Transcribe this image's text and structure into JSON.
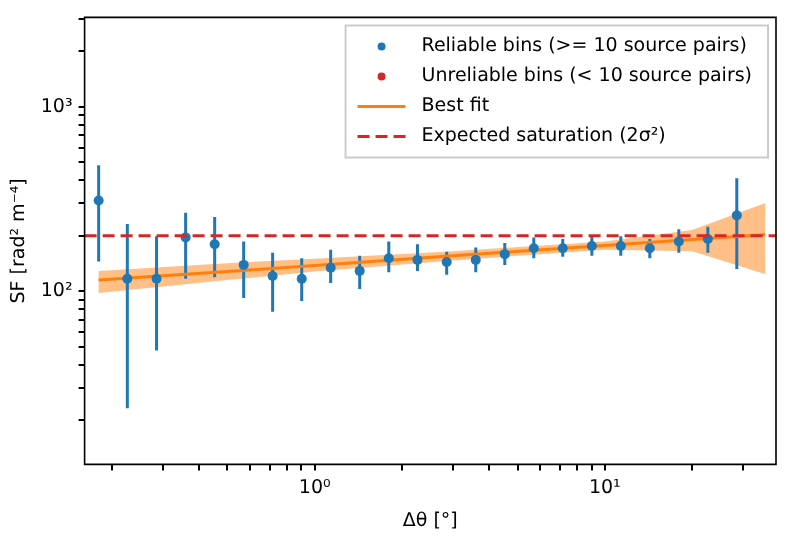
{
  "chart_data": {
    "type": "scatter",
    "xlabel": "Δθ [°]",
    "ylabel": "SF [rad² m⁻⁴]",
    "log": "xy",
    "legend": "top right",
    "xlim": [
      0.161,
      38.9
    ],
    "ylim": [
      11.5,
      3060
    ],
    "xticks": [
      {
        "value": 0.2,
        "label": null
      },
      {
        "value": 0.3,
        "label": null
      },
      {
        "value": 0.4,
        "label": null
      },
      {
        "value": 0.5,
        "label": null
      },
      {
        "value": 0.6,
        "label": null
      },
      {
        "value": 0.7,
        "label": null
      },
      {
        "value": 0.8,
        "label": null
      },
      {
        "value": 0.9,
        "label": null
      },
      {
        "value": 1,
        "label": "10⁰"
      },
      {
        "value": 2,
        "label": null
      },
      {
        "value": 3,
        "label": null
      },
      {
        "value": 4,
        "label": null
      },
      {
        "value": 5,
        "label": null
      },
      {
        "value": 6,
        "label": null
      },
      {
        "value": 7,
        "label": null
      },
      {
        "value": 8,
        "label": null
      },
      {
        "value": 9,
        "label": null
      },
      {
        "value": 10,
        "label": "10¹"
      },
      {
        "value": 20,
        "label": null
      },
      {
        "value": 30,
        "label": null
      }
    ],
    "yticks": [
      {
        "value": 20,
        "label": null
      },
      {
        "value": 30,
        "label": null
      },
      {
        "value": 40,
        "label": null
      },
      {
        "value": 50,
        "label": null
      },
      {
        "value": 60,
        "label": null
      },
      {
        "value": 70,
        "label": null
      },
      {
        "value": 80,
        "label": null
      },
      {
        "value": 90,
        "label": null
      },
      {
        "value": 100,
        "label": "10²"
      },
      {
        "value": 200,
        "label": null
      },
      {
        "value": 300,
        "label": null
      },
      {
        "value": 400,
        "label": null
      },
      {
        "value": 500,
        "label": null
      },
      {
        "value": 600,
        "label": null
      },
      {
        "value": 700,
        "label": null
      },
      {
        "value": 800,
        "label": null
      },
      {
        "value": 900,
        "label": null
      },
      {
        "value": 1000,
        "label": "10³"
      },
      {
        "value": 2000,
        "label": null
      },
      {
        "value": 3000,
        "label": null
      }
    ],
    "series": [
      {
        "name": "Reliable bins (>= 10 source pairs)",
        "marker": "circle",
        "color": "#1f77b4",
        "x": [
          0.18,
          0.226,
          0.285,
          0.359,
          0.452,
          0.569,
          0.716,
          0.902,
          1.135,
          1.429,
          1.8,
          2.26,
          2.85,
          3.59,
          4.52,
          5.69,
          7.16,
          9.02,
          11.35,
          14.29,
          17.99,
          22.65,
          28.5
        ],
        "values": [
          311,
          117,
          117,
          196,
          180,
          139,
          121,
          117,
          134,
          129,
          151,
          148,
          144,
          148,
          159,
          171,
          171,
          176,
          176,
          171,
          186,
          192,
          258
        ],
        "errors": [
          [
            145,
            482
          ],
          [
            23.2,
            232
          ],
          [
            47.7,
            199
          ],
          [
            117,
            267
          ],
          [
            119,
            253
          ],
          [
            91.8,
            186
          ],
          [
            77.3,
            162
          ],
          [
            88.5,
            151
          ],
          [
            111,
            168
          ],
          [
            103,
            156
          ],
          [
            127,
            186
          ],
          [
            129,
            180
          ],
          [
            123,
            164
          ],
          [
            127,
            173
          ],
          [
            139,
            183
          ],
          [
            151,
            196
          ],
          [
            154,
            192
          ],
          [
            156,
            199
          ],
          [
            156,
            199
          ],
          [
            151,
            192
          ],
          [
            162,
            217
          ],
          [
            162,
            224
          ],
          [
            132,
            410
          ]
        ]
      },
      {
        "name": "Unreliable bins (< 10 source pairs)",
        "marker": "circle",
        "color": "#d62728"
      },
      {
        "name": "Best fit",
        "type": "line",
        "color": "#ff7f0e",
        "x": [
          0.18,
          0.5,
          1,
          3,
          10,
          20,
          35.7
        ],
        "values": [
          115,
          128,
          138,
          156,
          177,
          191,
          203
        ],
        "lower": [
          98,
          115,
          128,
          147,
          168,
          165,
          124
        ],
        "upper": [
          129,
          142,
          150,
          165,
          186,
          215,
          301
        ]
      }
    ],
    "ref_lines": [
      {
        "axis": "y",
        "value": 200,
        "label": "Expected saturation (2σ²)",
        "color": "#d62728",
        "line_style": "dashed"
      }
    ]
  }
}
